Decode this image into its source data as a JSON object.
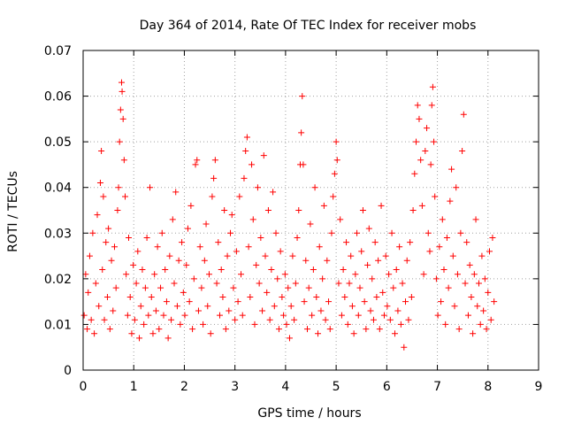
{
  "chart_data": {
    "type": "scatter",
    "title": "Day 364 of 2014, Rate Of TEC Index for receiver mobs",
    "xlabel": "GPS time / hours",
    "ylabel": "ROTI / TECUs",
    "xlim": [
      0,
      9
    ],
    "ylim": [
      0,
      0.07
    ],
    "x_ticks": [
      "0",
      "1",
      "2",
      "3",
      "4",
      "5",
      "6",
      "7",
      "8",
      "9"
    ],
    "y_ticks": [
      "0",
      "0.01",
      "0.02",
      "0.03",
      "0.04",
      "0.05",
      "0.06",
      "0.07"
    ],
    "x_tick_values": [
      0,
      1,
      2,
      3,
      4,
      5,
      6,
      7,
      8,
      9
    ],
    "y_tick_values": [
      0,
      0.01,
      0.02,
      0.03,
      0.04,
      0.05,
      0.06,
      0.07
    ],
    "grid": true,
    "marker": "+",
    "series": [
      {
        "name": "ROTI",
        "color": "#ff0000",
        "points": [
          [
            0.02,
            0.012
          ],
          [
            0.05,
            0.021
          ],
          [
            0.08,
            0.009
          ],
          [
            0.1,
            0.017
          ],
          [
            0.13,
            0.025
          ],
          [
            0.16,
            0.011
          ],
          [
            0.19,
            0.03
          ],
          [
            0.22,
            0.008
          ],
          [
            0.25,
            0.019
          ],
          [
            0.28,
            0.034
          ],
          [
            0.31,
            0.014
          ],
          [
            0.34,
            0.041
          ],
          [
            0.36,
            0.048
          ],
          [
            0.38,
            0.022
          ],
          [
            0.4,
            0.038
          ],
          [
            0.42,
            0.011
          ],
          [
            0.45,
            0.028
          ],
          [
            0.48,
            0.016
          ],
          [
            0.5,
            0.031
          ],
          [
            0.53,
            0.009
          ],
          [
            0.56,
            0.024
          ],
          [
            0.59,
            0.013
          ],
          [
            0.62,
            0.027
          ],
          [
            0.65,
            0.018
          ],
          [
            0.68,
            0.035
          ],
          [
            0.7,
            0.04
          ],
          [
            0.72,
            0.05
          ],
          [
            0.74,
            0.057
          ],
          [
            0.76,
            0.063
          ],
          [
            0.77,
            0.061
          ],
          [
            0.79,
            0.055
          ],
          [
            0.81,
            0.046
          ],
          [
            0.83,
            0.038
          ],
          [
            0.85,
            0.021
          ],
          [
            0.88,
            0.012
          ],
          [
            0.9,
            0.029
          ],
          [
            0.93,
            0.016
          ],
          [
            0.96,
            0.008
          ],
          [
            0.99,
            0.023
          ],
          [
            1.02,
            0.011
          ],
          [
            1.05,
            0.019
          ],
          [
            1.08,
            0.026
          ],
          [
            1.11,
            0.007
          ],
          [
            1.14,
            0.014
          ],
          [
            1.17,
            0.022
          ],
          [
            1.2,
            0.01
          ],
          [
            1.23,
            0.018
          ],
          [
            1.26,
            0.029
          ],
          [
            1.29,
            0.012
          ],
          [
            1.32,
            0.04
          ],
          [
            1.35,
            0.016
          ],
          [
            1.38,
            0.008
          ],
          [
            1.41,
            0.021
          ],
          [
            1.44,
            0.013
          ],
          [
            1.47,
            0.027
          ],
          [
            1.5,
            0.009
          ],
          [
            1.53,
            0.018
          ],
          [
            1.56,
            0.03
          ],
          [
            1.59,
            0.012
          ],
          [
            1.62,
            0.022
          ],
          [
            1.65,
            0.015
          ],
          [
            1.68,
            0.007
          ],
          [
            1.71,
            0.025
          ],
          [
            1.74,
            0.011
          ],
          [
            1.77,
            0.033
          ],
          [
            1.8,
            0.019
          ],
          [
            1.83,
            0.039
          ],
          [
            1.86,
            0.014
          ],
          [
            1.89,
            0.024
          ],
          [
            1.92,
            0.01
          ],
          [
            1.95,
            0.028
          ],
          [
            1.98,
            0.017
          ],
          [
            2.01,
            0.012
          ],
          [
            2.04,
            0.023
          ],
          [
            2.07,
            0.031
          ],
          [
            2.1,
            0.015
          ],
          [
            2.13,
            0.036
          ],
          [
            2.16,
            0.009
          ],
          [
            2.19,
            0.02
          ],
          [
            2.22,
            0.045
          ],
          [
            2.25,
            0.046
          ],
          [
            2.28,
            0.013
          ],
          [
            2.31,
            0.027
          ],
          [
            2.34,
            0.018
          ],
          [
            2.37,
            0.01
          ],
          [
            2.4,
            0.024
          ],
          [
            2.43,
            0.032
          ],
          [
            2.46,
            0.014
          ],
          [
            2.49,
            0.021
          ],
          [
            2.52,
            0.008
          ],
          [
            2.55,
            0.038
          ],
          [
            2.58,
            0.042
          ],
          [
            2.61,
            0.046
          ],
          [
            2.64,
            0.019
          ],
          [
            2.67,
            0.028
          ],
          [
            2.7,
            0.012
          ],
          [
            2.73,
            0.022
          ],
          [
            2.76,
            0.016
          ],
          [
            2.79,
            0.035
          ],
          [
            2.82,
            0.009
          ],
          [
            2.85,
            0.025
          ],
          [
            2.88,
            0.013
          ],
          [
            2.91,
            0.03
          ],
          [
            2.94,
            0.034
          ],
          [
            2.97,
            0.018
          ],
          [
            3.0,
            0.011
          ],
          [
            3.03,
            0.026
          ],
          [
            3.06,
            0.015
          ],
          [
            3.09,
            0.038
          ],
          [
            3.12,
            0.021
          ],
          [
            3.15,
            0.012
          ],
          [
            3.18,
            0.042
          ],
          [
            3.21,
            0.048
          ],
          [
            3.24,
            0.051
          ],
          [
            3.27,
            0.027
          ],
          [
            3.3,
            0.016
          ],
          [
            3.33,
            0.045
          ],
          [
            3.36,
            0.033
          ],
          [
            3.39,
            0.01
          ],
          [
            3.42,
            0.023
          ],
          [
            3.45,
            0.04
          ],
          [
            3.48,
            0.019
          ],
          [
            3.51,
            0.029
          ],
          [
            3.54,
            0.013
          ],
          [
            3.57,
            0.047
          ],
          [
            3.6,
            0.025
          ],
          [
            3.63,
            0.017
          ],
          [
            3.66,
            0.035
          ],
          [
            3.69,
            0.011
          ],
          [
            3.72,
            0.022
          ],
          [
            3.75,
            0.039
          ],
          [
            3.78,
            0.014
          ],
          [
            3.81,
            0.03
          ],
          [
            3.84,
            0.02
          ],
          [
            3.87,
            0.009
          ],
          [
            3.9,
            0.026
          ],
          [
            3.93,
            0.016
          ],
          [
            3.96,
            0.012
          ],
          [
            3.99,
            0.021
          ],
          [
            4.02,
            0.01
          ],
          [
            4.05,
            0.018
          ],
          [
            4.08,
            0.007
          ],
          [
            4.11,
            0.014
          ],
          [
            4.14,
            0.025
          ],
          [
            4.17,
            0.011
          ],
          [
            4.2,
            0.019
          ],
          [
            4.23,
            0.029
          ],
          [
            4.26,
            0.035
          ],
          [
            4.29,
            0.045
          ],
          [
            4.31,
            0.052
          ],
          [
            4.33,
            0.06
          ],
          [
            4.35,
            0.045
          ],
          [
            4.37,
            0.015
          ],
          [
            4.4,
            0.024
          ],
          [
            4.43,
            0.009
          ],
          [
            4.46,
            0.018
          ],
          [
            4.49,
            0.032
          ],
          [
            4.52,
            0.012
          ],
          [
            4.55,
            0.022
          ],
          [
            4.58,
            0.04
          ],
          [
            4.61,
            0.016
          ],
          [
            4.64,
            0.008
          ],
          [
            4.67,
            0.027
          ],
          [
            4.7,
            0.013
          ],
          [
            4.73,
            0.02
          ],
          [
            4.76,
            0.036
          ],
          [
            4.79,
            0.011
          ],
          [
            4.82,
            0.024
          ],
          [
            4.85,
            0.015
          ],
          [
            4.88,
            0.009
          ],
          [
            4.91,
            0.03
          ],
          [
            4.94,
            0.038
          ],
          [
            4.97,
            0.043
          ],
          [
            5.0,
            0.05
          ],
          [
            5.02,
            0.046
          ],
          [
            5.05,
            0.019
          ],
          [
            5.08,
            0.033
          ],
          [
            5.11,
            0.012
          ],
          [
            5.14,
            0.022
          ],
          [
            5.17,
            0.016
          ],
          [
            5.2,
            0.028
          ],
          [
            5.23,
            0.01
          ],
          [
            5.26,
            0.019
          ],
          [
            5.29,
            0.025
          ],
          [
            5.32,
            0.014
          ],
          [
            5.35,
            0.008
          ],
          [
            5.38,
            0.021
          ],
          [
            5.41,
            0.03
          ],
          [
            5.44,
            0.012
          ],
          [
            5.47,
            0.018
          ],
          [
            5.5,
            0.026
          ],
          [
            5.53,
            0.035
          ],
          [
            5.56,
            0.015
          ],
          [
            5.59,
            0.009
          ],
          [
            5.62,
            0.023
          ],
          [
            5.65,
            0.031
          ],
          [
            5.68,
            0.013
          ],
          [
            5.71,
            0.02
          ],
          [
            5.74,
            0.011
          ],
          [
            5.77,
            0.028
          ],
          [
            5.8,
            0.016
          ],
          [
            5.83,
            0.024
          ],
          [
            5.86,
            0.009
          ],
          [
            5.89,
            0.036
          ],
          [
            5.92,
            0.017
          ],
          [
            5.95,
            0.012
          ],
          [
            5.98,
            0.025
          ],
          [
            6.01,
            0.014
          ],
          [
            6.04,
            0.021
          ],
          [
            6.07,
            0.011
          ],
          [
            6.1,
            0.03
          ],
          [
            6.13,
            0.018
          ],
          [
            6.16,
            0.008
          ],
          [
            6.19,
            0.022
          ],
          [
            6.22,
            0.013
          ],
          [
            6.25,
            0.027
          ],
          [
            6.28,
            0.01
          ],
          [
            6.31,
            0.019
          ],
          [
            6.34,
            0.005
          ],
          [
            6.37,
            0.015
          ],
          [
            6.4,
            0.024
          ],
          [
            6.43,
            0.011
          ],
          [
            6.46,
            0.028
          ],
          [
            6.49,
            0.016
          ],
          [
            6.52,
            0.035
          ],
          [
            6.55,
            0.043
          ],
          [
            6.58,
            0.05
          ],
          [
            6.61,
            0.058
          ],
          [
            6.64,
            0.055
          ],
          [
            6.67,
            0.046
          ],
          [
            6.7,
            0.036
          ],
          [
            6.73,
            0.021
          ],
          [
            6.76,
            0.048
          ],
          [
            6.79,
            0.053
          ],
          [
            6.82,
            0.03
          ],
          [
            6.85,
            0.026
          ],
          [
            6.87,
            0.045
          ],
          [
            6.89,
            0.058
          ],
          [
            6.91,
            0.062
          ],
          [
            6.93,
            0.05
          ],
          [
            6.95,
            0.038
          ],
          [
            6.98,
            0.02
          ],
          [
            7.01,
            0.012
          ],
          [
            7.04,
            0.027
          ],
          [
            7.07,
            0.015
          ],
          [
            7.1,
            0.033
          ],
          [
            7.13,
            0.022
          ],
          [
            7.16,
            0.01
          ],
          [
            7.19,
            0.029
          ],
          [
            7.22,
            0.018
          ],
          [
            7.25,
            0.037
          ],
          [
            7.28,
            0.044
          ],
          [
            7.31,
            0.025
          ],
          [
            7.34,
            0.014
          ],
          [
            7.37,
            0.04
          ],
          [
            7.4,
            0.021
          ],
          [
            7.43,
            0.009
          ],
          [
            7.46,
            0.03
          ],
          [
            7.49,
            0.048
          ],
          [
            7.52,
            0.056
          ],
          [
            7.55,
            0.019
          ],
          [
            7.58,
            0.028
          ],
          [
            7.61,
            0.012
          ],
          [
            7.64,
            0.023
          ],
          [
            7.67,
            0.016
          ],
          [
            7.7,
            0.008
          ],
          [
            7.73,
            0.021
          ],
          [
            7.76,
            0.033
          ],
          [
            7.79,
            0.014
          ],
          [
            7.82,
            0.019
          ],
          [
            7.85,
            0.01
          ],
          [
            7.88,
            0.025
          ],
          [
            7.91,
            0.013
          ],
          [
            7.94,
            0.02
          ],
          [
            7.97,
            0.009
          ],
          [
            8.0,
            0.017
          ],
          [
            8.03,
            0.026
          ],
          [
            8.06,
            0.011
          ],
          [
            8.09,
            0.029
          ],
          [
            8.12,
            0.015
          ]
        ]
      }
    ]
  }
}
